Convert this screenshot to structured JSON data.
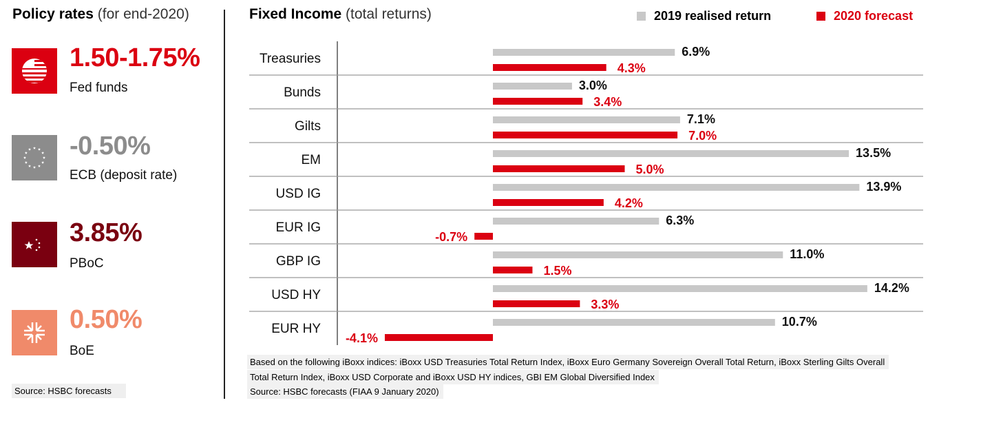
{
  "left_panel": {
    "title": "Policy rates",
    "subtitle": "(for end-2020)",
    "rates": [
      {
        "value": "1.50-1.75%",
        "label": "Fed funds",
        "icon": "us-flag-icon",
        "color": "#db0011",
        "icon_bg": "#db0011"
      },
      {
        "value": "-0.50%",
        "label": "ECB (deposit rate)",
        "icon": "eu-flag-icon",
        "color": "#8c8c8c",
        "icon_bg": "#8c8c8c"
      },
      {
        "value": "3.85%",
        "label": "PBoC",
        "icon": "china-flag-icon",
        "color": "#7a0010",
        "icon_bg": "#7a0010"
      },
      {
        "value": "0.50%",
        "label": "BoE",
        "icon": "uk-flag-icon",
        "color": "#f08a6a",
        "icon_bg": "#f08a6a"
      }
    ],
    "source": "Source: HSBC forecasts"
  },
  "right_panel": {
    "title": "Fixed Income",
    "subtitle": "(total returns)",
    "footnotes": [
      "Based on the following iBoxx indices: iBoxx USD Treasuries Total Return Index, iBoxx Euro Germany Sovereign Overall Total Return, iBoxx Sterling Gilts Overall",
      "Total Return Index, iBoxx USD Corporate and iBoxx USD HY indices, GBI EM Global Diversified Index",
      "Source: HSBC forecasts (FIAA 9 January 2020)"
    ]
  },
  "colors": {
    "realised": "#c8c8c8",
    "forecast": "#db0011",
    "realised_label": "#111111",
    "forecast_label": "#db0011"
  },
  "chart_data": {
    "type": "bar",
    "orientation": "horizontal",
    "title": "Fixed Income (total returns)",
    "categories": [
      "Treasuries",
      "Bunds",
      "Gilts",
      "EM",
      "USD IG",
      "EUR IG",
      "GBP IG",
      "USD HY",
      "EUR HY"
    ],
    "series": [
      {
        "name": "2019 realised return",
        "values": [
          6.9,
          3.0,
          7.1,
          13.5,
          13.9,
          6.3,
          11.0,
          14.2,
          10.7
        ],
        "labels": [
          "6.9%",
          "3.0%",
          "7.1%",
          "13.5%",
          "13.9%",
          "6.3%",
          "11.0%",
          "14.2%",
          "10.7%"
        ]
      },
      {
        "name": "2020 forecast",
        "values": [
          4.3,
          3.4,
          7.0,
          5.0,
          4.2,
          -0.7,
          1.5,
          3.3,
          -4.1
        ],
        "labels": [
          "4.3%",
          "3.4%",
          "7.0%",
          "5.0%",
          "4.2%",
          "-0.7%",
          "1.5%",
          "3.3%",
          "-4.1%"
        ]
      }
    ],
    "xlim": [
      -5.6,
      16.3
    ],
    "legend": "top-right"
  }
}
